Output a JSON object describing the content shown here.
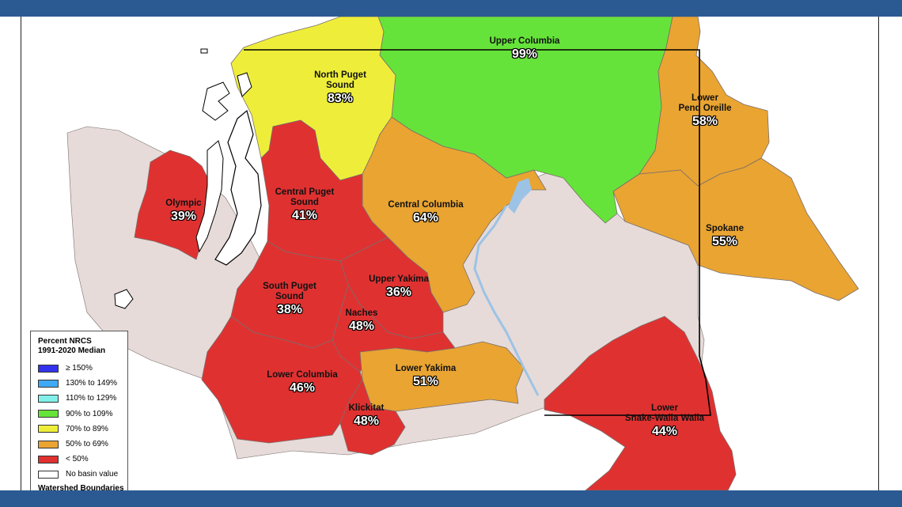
{
  "map": {
    "legend": {
      "title_line1": "Percent NRCS",
      "title_line2": "1991-2020 Median",
      "items": [
        {
          "label": "≥ 150%",
          "color": "#3333ee"
        },
        {
          "label": "130% to 149%",
          "color": "#3fa9f5"
        },
        {
          "label": "110% to 129%",
          "color": "#80f0e8"
        },
        {
          "label": "90% to 109%",
          "color": "#66e33a"
        },
        {
          "label": "70% to 89%",
          "color": "#eeee3a"
        },
        {
          "label": "50% to 69%",
          "color": "#e9a432"
        },
        {
          "label": "< 50%",
          "color": "#e03131"
        },
        {
          "label": "No basin value",
          "color": "#ffffff"
        }
      ],
      "footer": "Watershed Boundaries"
    },
    "basins": [
      {
        "key": "upper_columbia",
        "name_lines": [
          "Upper Columbia"
        ],
        "percent": "99%",
        "color": "#66e33a"
      },
      {
        "key": "north_puget",
        "name_lines": [
          "North Puget",
          "Sound"
        ],
        "percent": "83%",
        "color": "#eeee3a"
      },
      {
        "key": "lower_pend_oreille",
        "name_lines": [
          "Lower",
          "Pend Oreille"
        ],
        "percent": "58%",
        "color": "#e9a432"
      },
      {
        "key": "olympic",
        "name_lines": [
          "Olympic"
        ],
        "percent": "39%",
        "color": "#e03131"
      },
      {
        "key": "central_puget",
        "name_lines": [
          "Central Puget",
          "Sound"
        ],
        "percent": "41%",
        "color": "#e03131"
      },
      {
        "key": "central_columbia",
        "name_lines": [
          "Central Columbia"
        ],
        "percent": "64%",
        "color": "#e9a432"
      },
      {
        "key": "spokane",
        "name_lines": [
          "Spokane"
        ],
        "percent": "55%",
        "color": "#e9a432"
      },
      {
        "key": "upper_yakima",
        "name_lines": [
          "Upper Yakima"
        ],
        "percent": "36%",
        "color": "#e03131"
      },
      {
        "key": "south_puget",
        "name_lines": [
          "South Puget",
          "Sound"
        ],
        "percent": "38%",
        "color": "#e03131"
      },
      {
        "key": "naches",
        "name_lines": [
          "Naches"
        ],
        "percent": "48%",
        "color": "#e03131"
      },
      {
        "key": "lower_columbia",
        "name_lines": [
          "Lower Columbia"
        ],
        "percent": "46%",
        "color": "#e03131"
      },
      {
        "key": "lower_yakima",
        "name_lines": [
          "Lower Yakima"
        ],
        "percent": "51%",
        "color": "#e9a432"
      },
      {
        "key": "klickitat",
        "name_lines": [
          "Klickitat"
        ],
        "percent": "48%",
        "color": "#e03131"
      },
      {
        "key": "lower_snake_walla_walla",
        "name_lines": [
          "Lower",
          "Snake-Walla Walla"
        ],
        "percent": "44%",
        "color": "#e03131"
      }
    ],
    "colors": {
      "frame": "#2b5a93",
      "no_basin_land": "#e6dbd9",
      "water": "#9cc3e6",
      "boundary": "#000000"
    }
  }
}
